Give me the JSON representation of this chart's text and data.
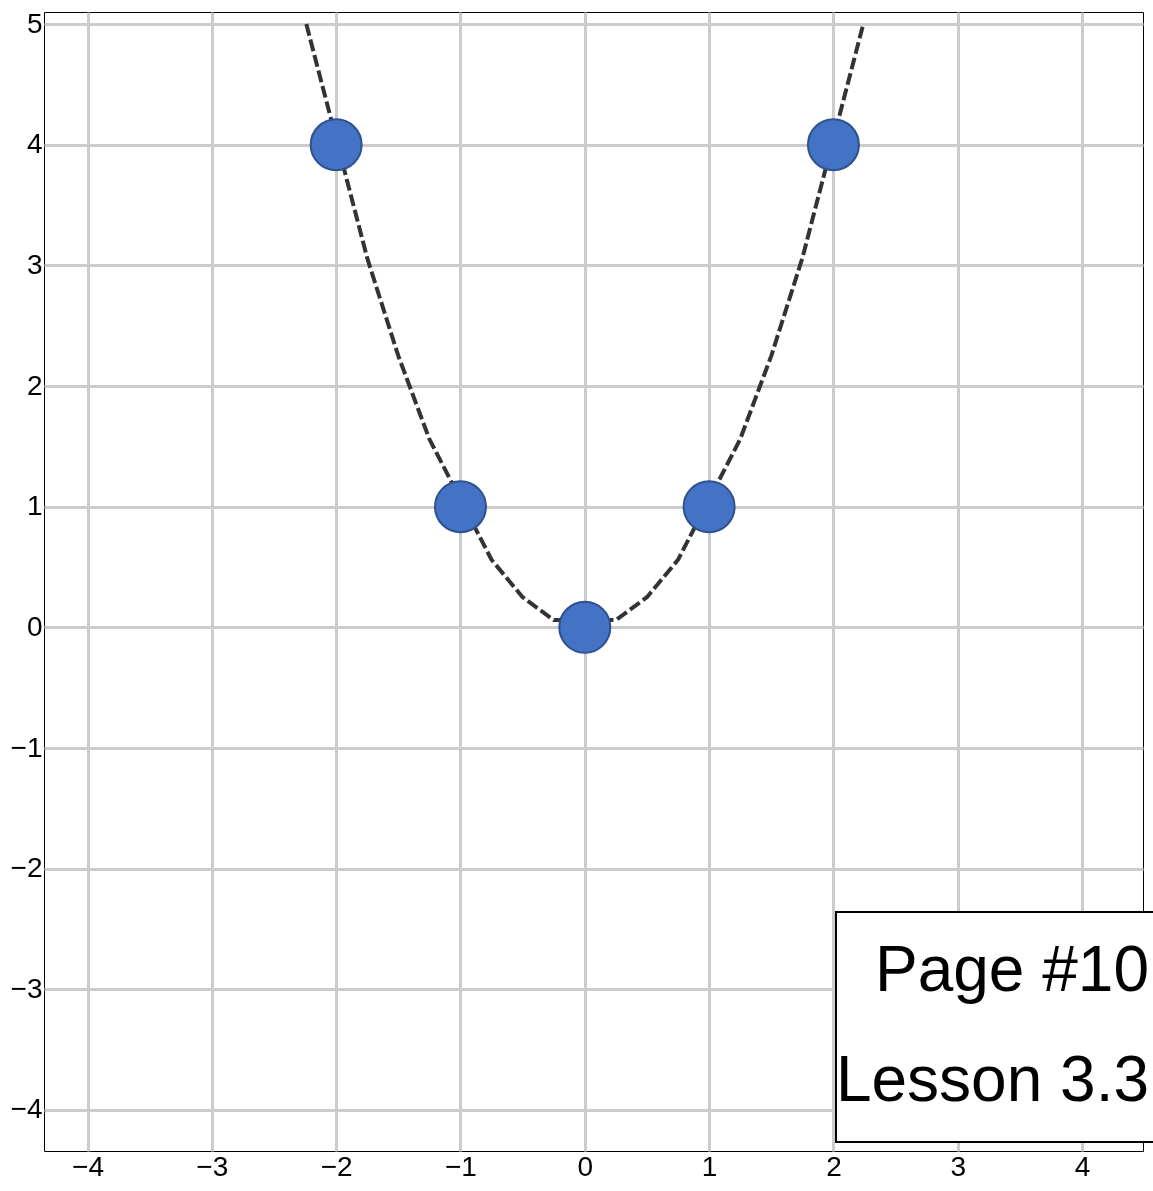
{
  "chart_data": {
    "type": "scatter",
    "series": [
      {
        "type": "line",
        "color": "#333333",
        "line_style": "dashed",
        "marker": "none",
        "x": [
          -2.24,
          -1.75,
          -1.5,
          -1.25,
          -0.75,
          -0.5,
          -0.25,
          0.25,
          0.5,
          0.75,
          1.25,
          1.5,
          1.75,
          2.24
        ],
        "values": [
          5.0,
          3.06,
          2.25,
          1.56,
          0.56,
          0.25,
          0.06,
          0.06,
          0.25,
          0.56,
          1.56,
          2.25,
          3.06,
          5.0
        ]
      },
      {
        "color": "#4472c4",
        "marker": "circle",
        "x": [
          -2,
          -1,
          0,
          1,
          2
        ],
        "values": [
          4,
          1,
          0,
          1,
          4
        ]
      }
    ],
    "xlim": [
      -4.35,
      4.49
    ],
    "ylim": [
      -4.34,
      5.1
    ],
    "xticks": [
      -4,
      -3,
      -2,
      -1,
      0,
      1,
      2,
      3,
      4
    ],
    "yticks": [
      -4,
      -3,
      -2,
      -1,
      0,
      1,
      2,
      3,
      4,
      5
    ],
    "grid": true,
    "annotations": [
      "Page #10",
      "Lesson 3.3"
    ]
  }
}
